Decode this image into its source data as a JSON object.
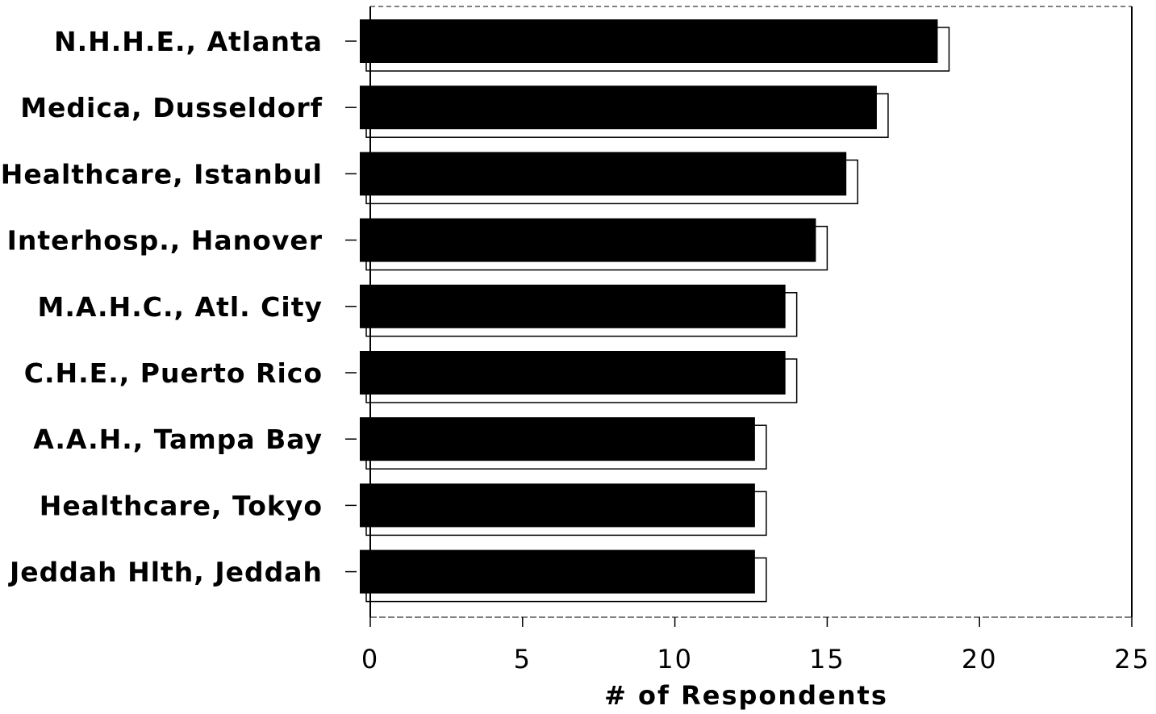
{
  "chart_data": {
    "type": "bar",
    "orientation": "horizontal",
    "categories": [
      "N.H.H.E., Atlanta",
      "Medica, Dusseldorf",
      "Healthcare, Istanbul",
      "Interhosp., Hanover",
      "M.A.H.C., Atl. City",
      "C.H.E., Puerto Rico",
      "A.A.H., Tampa Bay",
      "Healthcare, Tokyo",
      "Jeddah Hlth, Jeddah"
    ],
    "values": [
      19,
      17,
      16,
      15,
      14,
      14,
      13,
      13,
      13
    ],
    "xlabel": "# of Respondents",
    "ylabel": "",
    "xlim": [
      0,
      25
    ],
    "xticks": [
      "0",
      "5",
      "10",
      "15",
      "20",
      "25"
    ],
    "tick_values": [
      0,
      5,
      10,
      15,
      20,
      25
    ],
    "grid": false,
    "legend": "none",
    "colors": {
      "bar": "#000000",
      "shadow": "#000000",
      "background": "#ffffff"
    }
  }
}
